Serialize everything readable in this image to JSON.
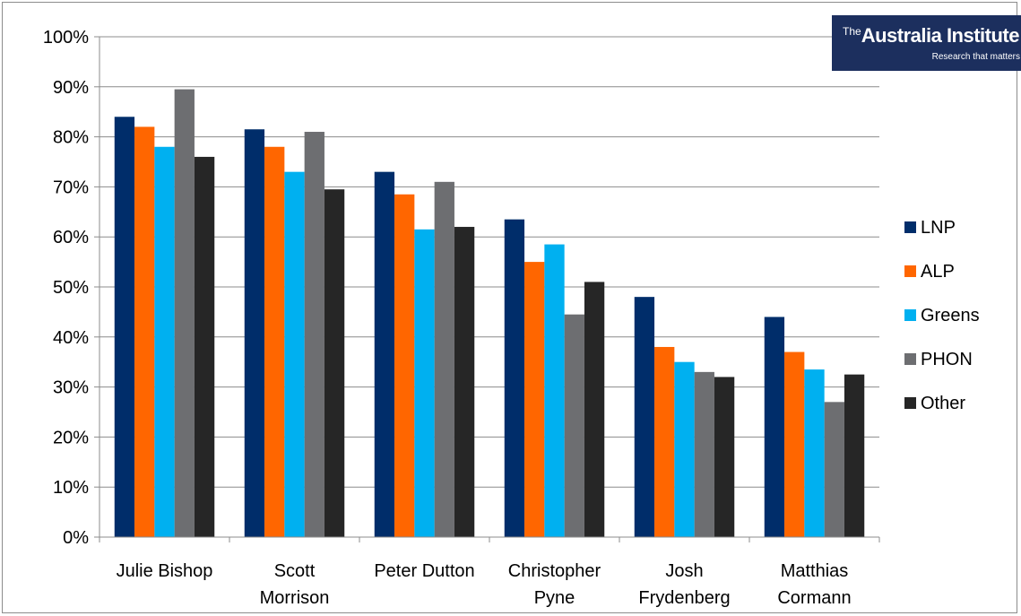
{
  "chart_data": {
    "type": "bar",
    "categories": [
      "Julie Bishop",
      "Scott Morrison",
      "Peter Dutton",
      "Christopher Pyne",
      "Josh Frydenberg",
      "Matthias Cormann"
    ],
    "category_lines": [
      [
        "Julie Bishop"
      ],
      [
        "Scott",
        "Morrison"
      ],
      [
        "Peter Dutton"
      ],
      [
        "Christopher",
        "Pyne"
      ],
      [
        "Josh",
        "Frydenberg"
      ],
      [
        "Matthias",
        "Cormann"
      ]
    ],
    "series": [
      {
        "name": "LNP",
        "color": "#002d6a",
        "values": [
          84,
          81.5,
          73,
          63.5,
          48,
          44
        ]
      },
      {
        "name": "ALP",
        "color": "#ff6600",
        "values": [
          82,
          78,
          68.5,
          55,
          38,
          37
        ]
      },
      {
        "name": "Greens",
        "color": "#00b0f0",
        "values": [
          78,
          73,
          61.5,
          58.5,
          35,
          33.5
        ]
      },
      {
        "name": "PHON",
        "color": "#6d6e71",
        "values": [
          89.5,
          81,
          71,
          44.5,
          33,
          27
        ]
      },
      {
        "name": "Other",
        "color": "#262626",
        "values": [
          76,
          69.5,
          62,
          51,
          32,
          32.5
        ]
      }
    ],
    "yticks": [
      "0%",
      "10%",
      "20%",
      "30%",
      "40%",
      "50%",
      "60%",
      "70%",
      "80%",
      "90%",
      "100%"
    ],
    "ylim": [
      0,
      100
    ],
    "title": "",
    "xlabel": "",
    "ylabel": "",
    "grid": true,
    "legend_position": "right"
  },
  "logo": {
    "prefix": "The",
    "brand": "Australia Institute",
    "tagline": "Research that matters"
  }
}
